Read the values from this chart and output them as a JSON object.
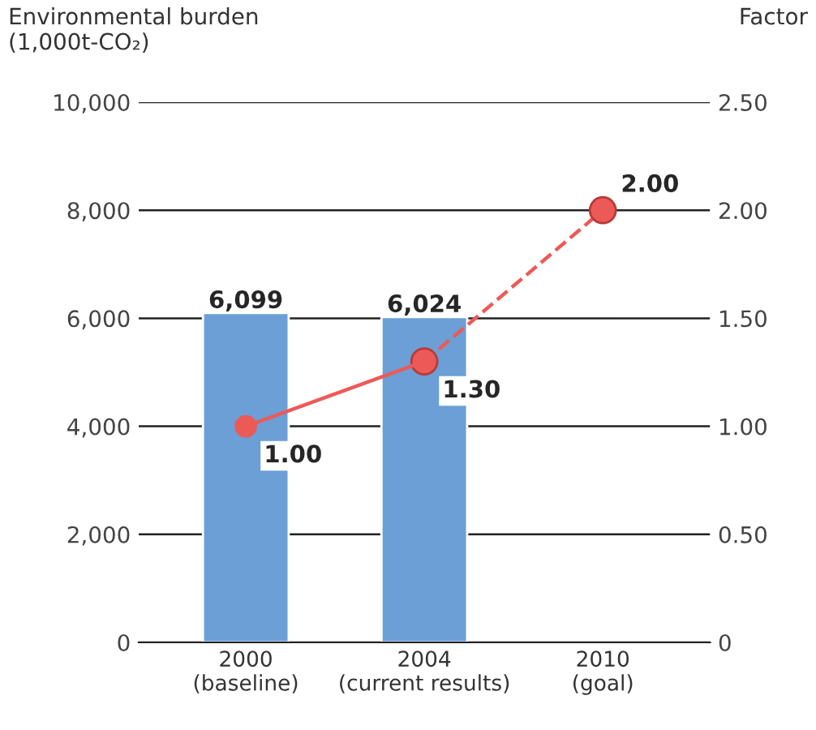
{
  "chart_data": {
    "type": "bar",
    "ylabel": "Environmental burden\n(1,000t-CO₂)",
    "y2label": "Factor",
    "categories": [
      "2000\n(baseline)",
      "2004\n(current results)",
      "2010\n(goal)"
    ],
    "series": [
      {
        "color": "#6b9fd6",
        "values": [
          6099,
          6024,
          null
        ],
        "value_labels": [
          "6,099",
          "6,024",
          null
        ]
      },
      {
        "type": "line",
        "axis": "y2",
        "color": "#ec5a58",
        "marker": "circle",
        "line_style": "solid",
        "values": [
          1.0,
          1.3,
          null
        ],
        "value_labels": [
          "1.00",
          "1.30",
          null
        ]
      },
      {
        "type": "line",
        "axis": "y2",
        "color": "#ec5a58",
        "marker": "circle",
        "line_style": "dashed",
        "values": [
          null,
          1.3,
          2.0
        ],
        "value_labels": [
          null,
          null,
          "2.00"
        ]
      }
    ],
    "ylim": [
      0,
      10000
    ],
    "yticks": [
      {
        "value": 0,
        "label": "0"
      },
      {
        "value": 2000,
        "label": "2,000"
      },
      {
        "value": 4000,
        "label": "4,000"
      },
      {
        "value": 6000,
        "label": "6,000"
      },
      {
        "value": 8000,
        "label": "8,000"
      },
      {
        "value": 10000,
        "label": "10,000"
      }
    ],
    "y2lim": [
      0,
      2.5
    ],
    "y2ticks": [
      {
        "value": 0,
        "label": "0"
      },
      {
        "value": 0.5,
        "label": "0.50"
      },
      {
        "value": 1.0,
        "label": "1.00"
      },
      {
        "value": 1.5,
        "label": "1.50"
      },
      {
        "value": 2.0,
        "label": "2.00"
      },
      {
        "value": 2.5,
        "label": "2.50"
      }
    ],
    "grid": "y"
  }
}
